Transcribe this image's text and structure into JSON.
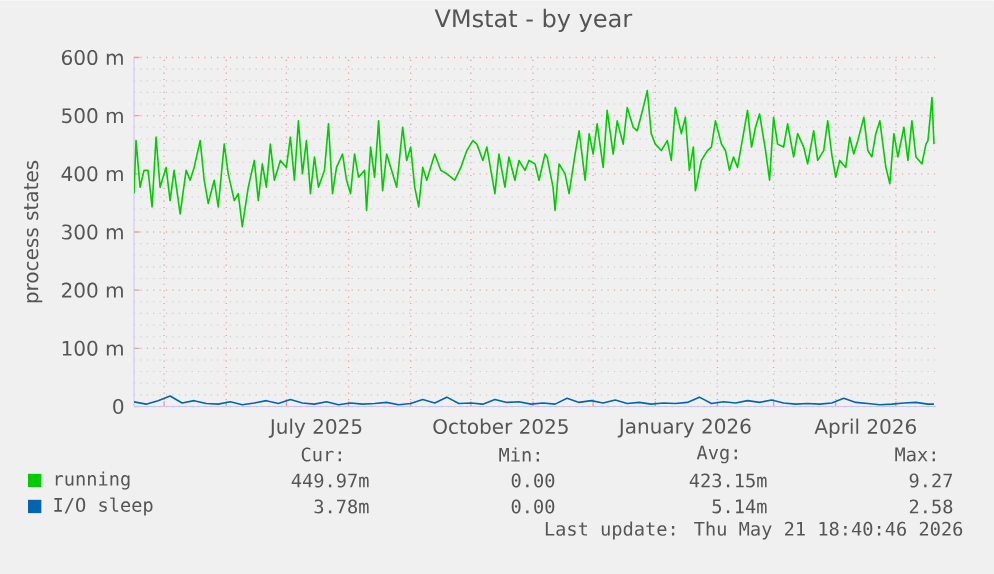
{
  "chart_data": {
    "type": "line",
    "title": "VMstat - by year",
    "ylabel": "process states",
    "xlim": [
      "2025-04-16",
      "2026-05-21"
    ],
    "xticks": [
      {
        "value": "2025-05-01",
        "label": null
      },
      {
        "value": "2025-06-01",
        "label": null
      },
      {
        "value": "2025-07-01",
        "label": null
      },
      {
        "value": "2025-07-16",
        "label": "July 2025"
      },
      {
        "value": "2025-08-01",
        "label": null
      },
      {
        "value": "2025-09-01",
        "label": null
      },
      {
        "value": "2025-10-01",
        "label": null
      },
      {
        "value": "2025-10-16",
        "label": "October 2025"
      },
      {
        "value": "2025-11-01",
        "label": null
      },
      {
        "value": "2025-12-01",
        "label": null
      },
      {
        "value": "2026-01-01",
        "label": null
      },
      {
        "value": "2026-01-16",
        "label": "January 2026"
      },
      {
        "value": "2026-02-01",
        "label": null
      },
      {
        "value": "2026-03-01",
        "label": null
      },
      {
        "value": "2026-04-01",
        "label": null
      },
      {
        "value": "2026-04-16",
        "label": "April 2026"
      },
      {
        "value": "2026-05-01",
        "label": null
      }
    ],
    "ylim": [
      0,
      600
    ],
    "yticks": [
      0,
      {
        "value": 100,
        "label": "100 m"
      },
      {
        "value": 200,
        "label": "200 m"
      },
      {
        "value": 300,
        "label": "300 m"
      },
      {
        "value": 400,
        "label": "400 m"
      },
      {
        "value": 500,
        "label": "500 m"
      },
      {
        "value": 600,
        "label": "600 m"
      }
    ],
    "grid": true,
    "legend": "bottom",
    "series": [
      {
        "name": "running",
        "color": "#00cc00",
        "x": [
          "2025-04-16",
          "2025-04-17",
          "2025-04-19",
          "2025-04-21",
          "2025-04-23",
          "2025-04-25",
          "2025-04-27",
          "2025-04-29",
          "2025-05-02",
          "2025-05-04",
          "2025-05-06",
          "2025-05-09",
          "2025-05-12",
          "2025-05-14",
          "2025-05-16",
          "2025-05-19",
          "2025-05-21",
          "2025-05-23",
          "2025-05-26",
          "2025-05-28",
          "2025-05-31",
          "2025-06-02",
          "2025-06-05",
          "2025-06-07",
          "2025-06-09",
          "2025-06-12",
          "2025-06-15",
          "2025-06-17",
          "2025-06-19",
          "2025-06-21",
          "2025-06-23",
          "2025-06-25",
          "2025-06-28",
          "2025-07-01",
          "2025-07-03",
          "2025-07-05",
          "2025-07-07",
          "2025-07-09",
          "2025-07-11",
          "2025-07-13",
          "2025-07-15",
          "2025-07-17",
          "2025-07-20",
          "2025-07-22",
          "2025-07-24",
          "2025-07-26",
          "2025-07-29",
          "2025-07-31",
          "2025-08-02",
          "2025-08-04",
          "2025-08-06",
          "2025-08-09",
          "2025-08-10",
          "2025-08-12",
          "2025-08-14",
          "2025-08-16",
          "2025-08-18",
          "2025-08-20",
          "2025-08-23",
          "2025-08-25",
          "2025-08-28",
          "2025-08-30",
          "2025-09-01",
          "2025-09-03",
          "2025-09-05",
          "2025-09-07",
          "2025-09-09",
          "2025-09-13",
          "2025-09-16",
          "2025-09-19",
          "2025-09-23",
          "2025-09-26",
          "2025-09-29",
          "2025-10-02",
          "2025-10-04",
          "2025-10-07",
          "2025-10-09",
          "2025-10-13",
          "2025-10-15",
          "2025-10-18",
          "2025-10-20",
          "2025-10-23",
          "2025-10-25",
          "2025-10-28",
          "2025-10-30",
          "2025-11-02",
          "2025-11-04",
          "2025-11-07",
          "2025-11-08",
          "2025-11-11",
          "2025-11-12",
          "2025-11-14",
          "2025-11-17",
          "2025-11-19",
          "2025-11-22",
          "2025-11-24",
          "2025-11-27",
          "2025-11-29",
          "2025-12-01",
          "2025-12-03",
          "2025-12-06",
          "2025-12-08",
          "2025-12-11",
          "2025-12-13",
          "2025-12-16",
          "2025-12-18",
          "2025-12-21",
          "2025-12-23",
          "2025-12-26",
          "2025-12-28",
          "2025-12-30",
          "2026-01-01",
          "2026-01-04",
          "2026-01-07",
          "2026-01-09",
          "2026-01-11",
          "2026-01-14",
          "2026-01-16",
          "2026-01-18",
          "2026-01-20",
          "2026-01-21",
          "2026-01-24",
          "2026-01-27",
          "2026-01-29",
          "2026-01-31",
          "2026-02-03",
          "2026-02-05",
          "2026-02-07",
          "2026-02-09",
          "2026-02-11",
          "2026-02-14",
          "2026-02-16",
          "2026-02-18",
          "2026-02-20",
          "2026-02-22",
          "2026-02-25",
          "2026-02-27",
          "2026-03-01",
          "2026-03-03",
          "2026-03-06",
          "2026-03-08",
          "2026-03-11",
          "2026-03-13",
          "2026-03-16",
          "2026-03-18",
          "2026-03-21",
          "2026-03-23",
          "2026-03-26",
          "2026-03-28",
          "2026-03-30",
          "2026-04-01",
          "2026-04-03",
          "2026-04-06",
          "2026-04-08",
          "2026-04-10",
          "2026-04-12",
          "2026-04-15",
          "2026-04-17",
          "2026-04-19",
          "2026-04-21",
          "2026-04-23",
          "2026-04-26",
          "2026-04-28",
          "2026-04-30",
          "2026-05-02",
          "2026-05-05",
          "2026-05-07",
          "2026-05-09",
          "2026-05-11",
          "2026-05-14",
          "2026-05-16",
          "2026-05-17",
          "2026-05-19",
          "2026-05-20"
        ],
        "values": [
          366,
          457,
          377,
          406,
          406,
          343,
          463,
          377,
          411,
          354,
          406,
          331,
          406,
          389,
          411,
          457,
          389,
          349,
          389,
          343,
          451,
          400,
          354,
          366,
          309,
          377,
          423,
          354,
          417,
          377,
          451,
          389,
          423,
          411,
          463,
          389,
          491,
          400,
          457,
          366,
          429,
          377,
          406,
          486,
          366,
          411,
          434,
          389,
          366,
          434,
          394,
          406,
          337,
          446,
          394,
          491,
          371,
          434,
          400,
          377,
          480,
          423,
          446,
          377,
          343,
          411,
          389,
          434,
          406,
          400,
          389,
          411,
          440,
          457,
          451,
          423,
          446,
          366,
          434,
          377,
          429,
          389,
          423,
          406,
          423,
          417,
          389,
          434,
          429,
          377,
          337,
          417,
          400,
          366,
          434,
          474,
          389,
          469,
          434,
          486,
          411,
          509,
          434,
          491,
          451,
          514,
          480,
          474,
          514,
          543,
          469,
          451,
          440,
          457,
          423,
          514,
          469,
          497,
          406,
          446,
          371,
          423,
          440,
          446,
          491,
          451,
          440,
          406,
          429,
          411,
          469,
          509,
          446,
          480,
          503,
          440,
          389,
          497,
          451,
          446,
          486,
          429,
          469,
          446,
          417,
          474,
          423,
          440,
          491,
          434,
          394,
          423,
          411,
          463,
          434,
          457,
          497,
          440,
          429,
          469,
          491,
          411,
          383,
          469,
          429,
          480,
          423,
          491,
          429,
          417,
          451,
          457,
          531,
          451
        ]
      },
      {
        "name": "I/O sleep",
        "color": "#0066b3",
        "x": [
          "2025-04-16",
          "2025-04-22",
          "2025-04-28",
          "2025-05-04",
          "2025-05-10",
          "2025-05-16",
          "2025-05-22",
          "2025-05-28",
          "2025-06-03",
          "2025-06-09",
          "2025-06-15",
          "2025-06-21",
          "2025-06-27",
          "2025-07-03",
          "2025-07-09",
          "2025-07-15",
          "2025-07-21",
          "2025-07-27",
          "2025-08-02",
          "2025-08-08",
          "2025-08-14",
          "2025-08-20",
          "2025-08-26",
          "2025-09-01",
          "2025-09-07",
          "2025-09-13",
          "2025-09-19",
          "2025-09-25",
          "2025-10-01",
          "2025-10-07",
          "2025-10-13",
          "2025-10-19",
          "2025-10-25",
          "2025-10-31",
          "2025-11-06",
          "2025-11-12",
          "2025-11-18",
          "2025-11-24",
          "2025-11-30",
          "2025-12-06",
          "2025-12-12",
          "2025-12-18",
          "2025-12-24",
          "2025-12-30",
          "2026-01-05",
          "2026-01-11",
          "2026-01-17",
          "2026-01-23",
          "2026-01-29",
          "2026-02-04",
          "2026-02-10",
          "2026-02-16",
          "2026-02-22",
          "2026-02-28",
          "2026-03-06",
          "2026-03-12",
          "2026-03-18",
          "2026-03-24",
          "2026-03-30",
          "2026-04-05",
          "2026-04-11",
          "2026-04-17",
          "2026-04-23",
          "2026-04-29",
          "2026-05-05",
          "2026-05-11",
          "2026-05-17",
          "2026-05-20"
        ],
        "values": [
          8,
          4,
          10,
          18,
          6,
          10,
          5,
          4,
          8,
          3,
          6,
          10,
          5,
          12,
          6,
          4,
          8,
          3,
          6,
          4,
          5,
          7,
          3,
          5,
          12,
          6,
          16,
          5,
          6,
          4,
          12,
          7,
          8,
          4,
          6,
          4,
          14,
          7,
          10,
          6,
          11,
          5,
          7,
          4,
          6,
          5,
          7,
          16,
          5,
          8,
          6,
          10,
          7,
          11,
          6,
          4,
          5,
          4,
          6,
          14,
          7,
          5,
          3,
          4,
          6,
          7,
          4,
          4
        ]
      }
    ],
    "annotations": [
      "Cur:",
      "Min:",
      "Avg:",
      "Max:",
      "449.97m",
      "0.00",
      "423.15m",
      "9.27",
      "3.78m",
      "0.00",
      "5.14m",
      "2.58",
      "Last update: Thu May 21 18:40:46 2026"
    ]
  }
}
